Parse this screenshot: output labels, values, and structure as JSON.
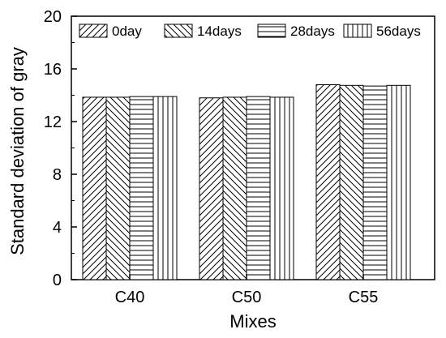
{
  "chart_data": {
    "type": "bar",
    "categories": [
      "C40",
      "C50",
      "C55"
    ],
    "series": [
      {
        "name": "0day",
        "values": [
          13.85,
          13.8,
          14.8
        ],
        "pattern": "diag-up"
      },
      {
        "name": "14days",
        "values": [
          13.85,
          13.85,
          14.75
        ],
        "pattern": "diag-down"
      },
      {
        "name": "28days",
        "values": [
          13.9,
          13.9,
          14.7
        ],
        "pattern": "horizontal"
      },
      {
        "name": "56days",
        "values": [
          13.9,
          13.85,
          14.75
        ],
        "pattern": "vertical"
      }
    ],
    "xlabel": "Mixes",
    "ylabel": "Standard deviation of gray",
    "ylim": [
      0,
      20
    ],
    "yticks": [
      0,
      4,
      8,
      12,
      16,
      20
    ],
    "ytick_labels": [
      "0",
      "4",
      "8",
      "12",
      "16",
      "20"
    ],
    "grid": false,
    "legend_placement": "top",
    "colors": {
      "stroke": "#000000",
      "fill": "#ffffff"
    }
  }
}
